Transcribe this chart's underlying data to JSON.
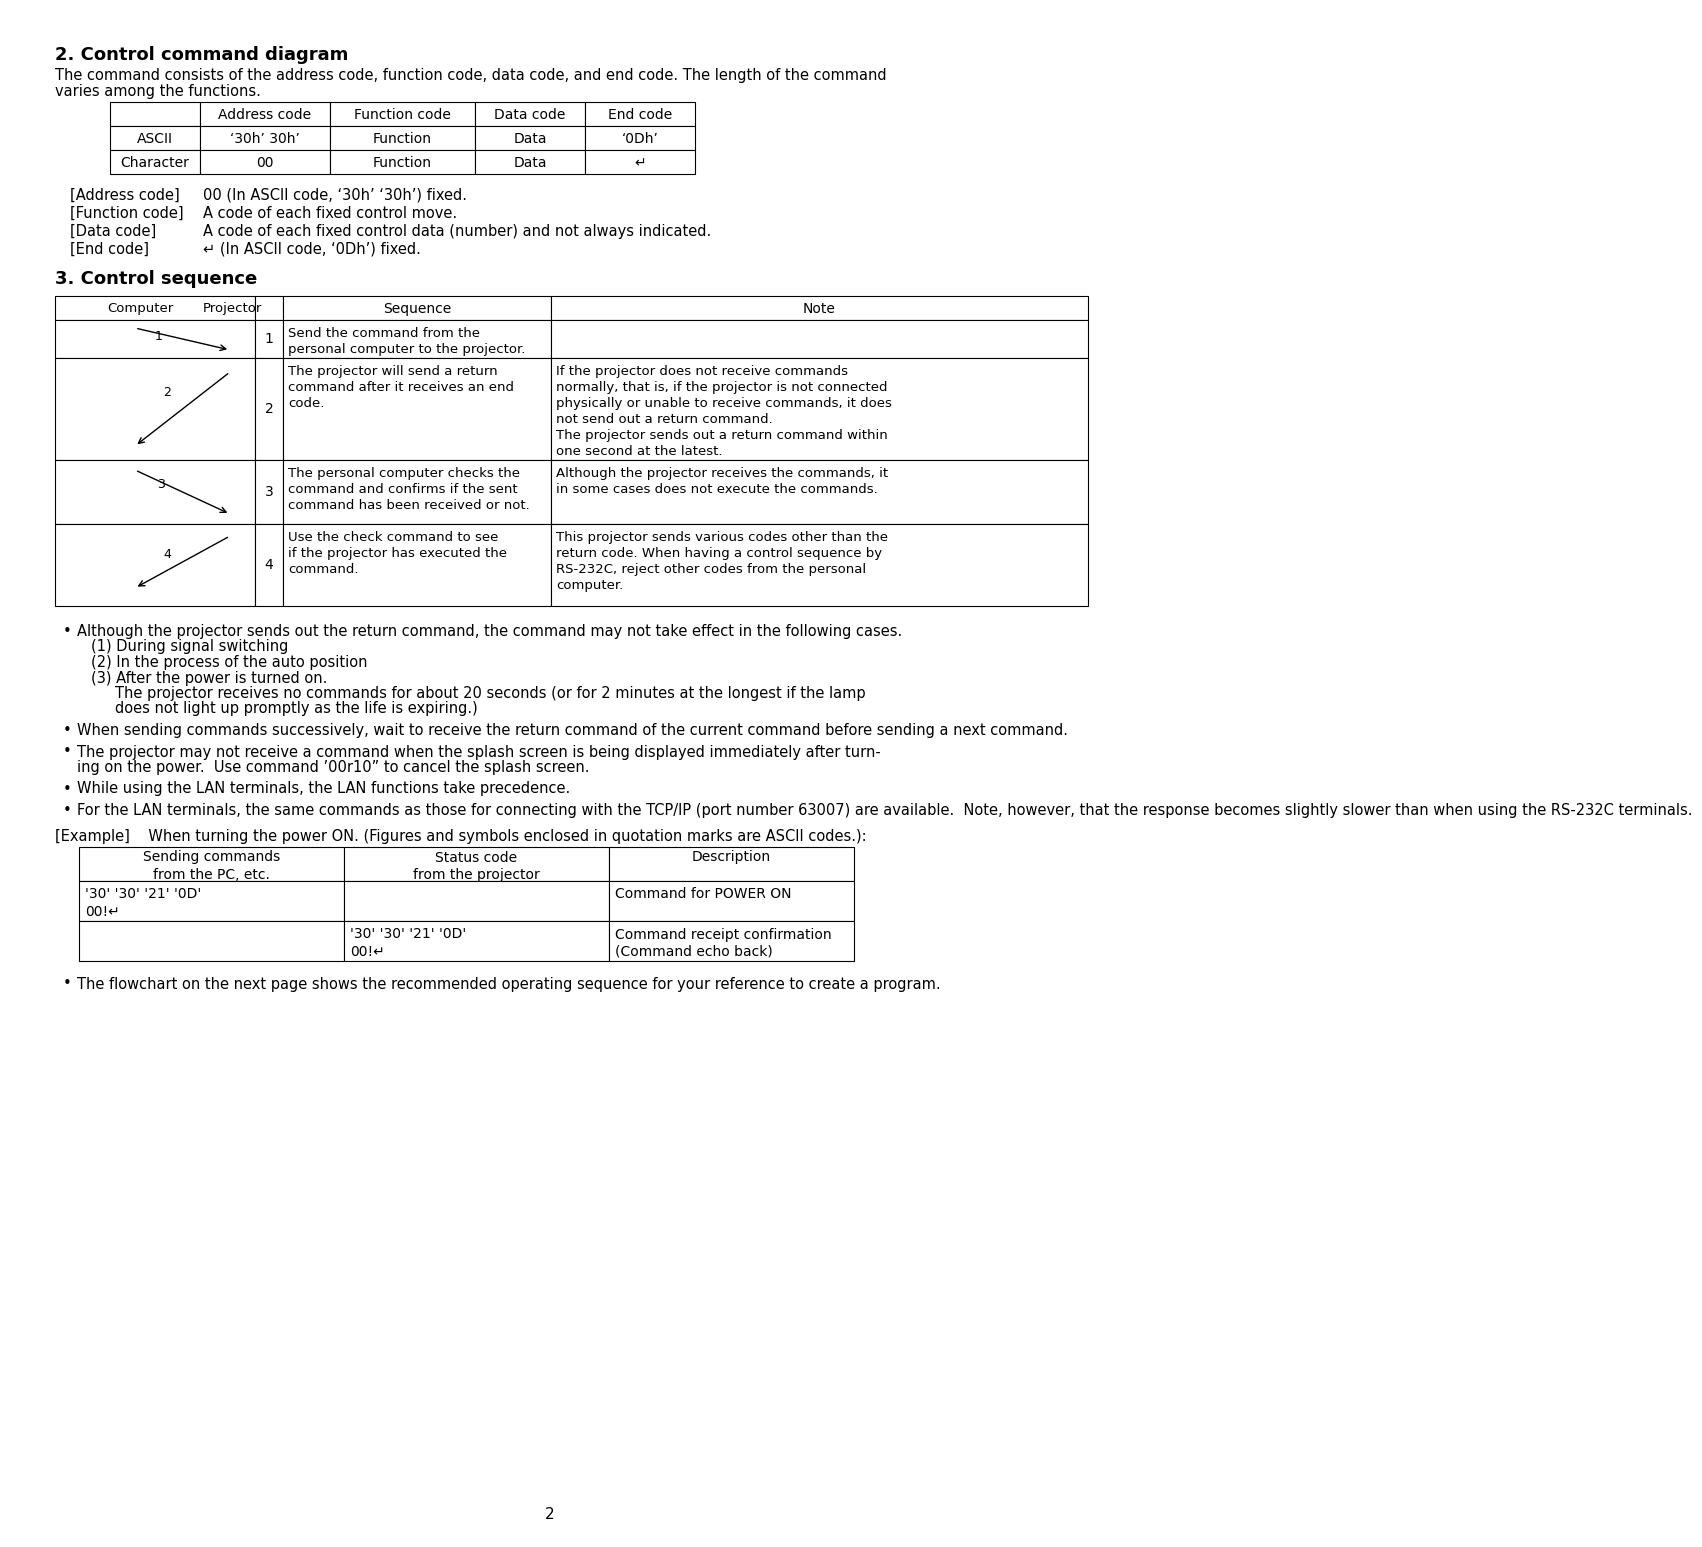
{
  "title2": "2. Control command diagram",
  "title3": "3. Control sequence",
  "bg_color": "#ffffff",
  "section2_desc": "The command consists of the address code, function code, data code, and end code. The length of the command\nvaries among the functions.",
  "table1_headers": [
    "",
    "Address code",
    "Function code",
    "Data code",
    "End code"
  ],
  "table1_row1": [
    "ASCII",
    "‘30h’ 30h’",
    "Function",
    "Data",
    "‘0Dh’"
  ],
  "table1_row2": [
    "Character",
    "00",
    "Function",
    "Data",
    "↵"
  ],
  "code_desc": [
    [
      "[Address code]",
      "00 (In ASCII code, ‘30h’ ‘30h’) fixed."
    ],
    [
      "[Function code]",
      "A code of each fixed control move."
    ],
    [
      "[Data code]",
      "A code of each fixed control data (number) and not always indicated."
    ],
    [
      "[End code]",
      "↵ (In ASCII code, ‘0Dh’) fixed."
    ]
  ],
  "seq_rows": [
    {
      "num": "1",
      "sequence": "Send the command from the\npersonal computer to the projector.",
      "note": ""
    },
    {
      "num": "2",
      "sequence": "The projector will send a return\ncommand after it receives an end\ncode.",
      "note": "If the projector does not receive commands\nnormally, that is, if the projector is not connected\nphysically or unable to receive commands, it does\nnot send out a return command.\nThe projector sends out a return command within\none second at the latest."
    },
    {
      "num": "3",
      "sequence": "The personal computer checks the\ncommand and confirms if the sent\ncommand has been received or not.",
      "note": "Although the projector receives the commands, it\nin some cases does not execute the commands."
    },
    {
      "num": "4",
      "sequence": "Use the check command to see\nif the projector has executed the\ncommand.",
      "note": "This projector sends various codes other than the\nreturn code. When having a control sequence by\nRS-232C, reject other codes from the personal\ncomputer."
    }
  ],
  "bullet_points": [
    {
      "text": "Although the projector sends out the return command, the command may not take effect in the following cases.",
      "sub": [
        "(1) During signal switching",
        "(2) In the process of the auto position",
        "(3) After the power is turned on.",
        "    The projector receives no commands for about 20 seconds (or for 2 minutes at the longest if the lamp",
        "    does not light up promptly as the life is expiring.)"
      ]
    },
    {
      "text": "When sending commands successively, wait to receive the return command of the current command before sending a next command.",
      "sub": []
    },
    {
      "text": "The projector may not receive a command when the splash screen is being displayed immediately after turn-\ning on the power.  Use command ’00r10” to cancel the splash screen.",
      "sub": []
    },
    {
      "text": "While using the LAN terminals, the LAN functions take precedence.",
      "sub": []
    },
    {
      "text": "For the LAN terminals, the same commands as those for connecting with the TCP/IP (port number 63007) are available.  Note, however, that the response becomes slightly slower than when using the RS-232C terminals.",
      "sub": []
    }
  ],
  "example_label": "[Example]    When turning the power ON. (Figures and symbols enclosed in quotation marks are ASCII codes.):",
  "example_table_headers": [
    "Sending commands\nfrom the PC, etc.",
    "Status code\nfrom the projector",
    "Description"
  ],
  "example_rows": [
    [
      "'30' '30' '21' '0D'\n00!↵",
      "",
      "Command for POWER ON"
    ],
    [
      "",
      "'30' '30' '21' '0D'\n00!↵",
      "Command receipt confirmation\n(Command echo back)"
    ]
  ],
  "final_bullet": "The flowchart on the next page shows the recommended operating sequence for your reference to create a program.",
  "page_num": "2"
}
